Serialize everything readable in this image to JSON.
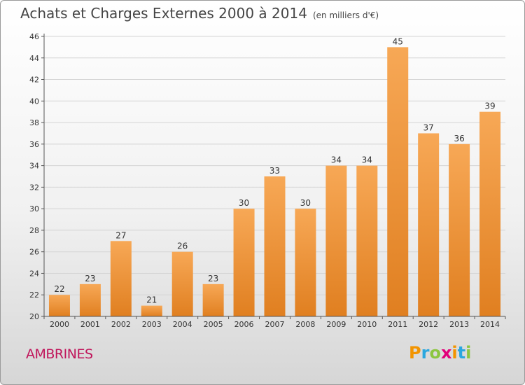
{
  "header": {
    "title": "Achats et Charges Externes 2000 à 2014",
    "unit": "(en milliers d'€)"
  },
  "footer": {
    "commune": "AMBRINES",
    "logo": "Proxiti",
    "logo_colors": [
      "#f29400",
      "#2aa7df",
      "#8cc63f",
      "#e2007a",
      "#f29400",
      "#2aa7df",
      "#8cc63f"
    ]
  },
  "chart_data": {
    "type": "bar",
    "categories": [
      "2000",
      "2001",
      "2002",
      "2003",
      "2004",
      "2005",
      "2006",
      "2007",
      "2008",
      "2009",
      "2010",
      "2011",
      "2012",
      "2013",
      "2014"
    ],
    "values": [
      22,
      23,
      27,
      21,
      26,
      23,
      30,
      33,
      30,
      34,
      34,
      45,
      37,
      36,
      39
    ],
    "ylim": [
      20,
      46
    ],
    "yticks": [
      20,
      22,
      24,
      26,
      28,
      30,
      32,
      34,
      36,
      38,
      40,
      42,
      44,
      46
    ],
    "data_labels": [
      "22",
      "23",
      "27",
      "21",
      "26",
      "23",
      "30",
      "33",
      "30",
      "34",
      "34",
      "45",
      "37",
      "36",
      "39"
    ],
    "grid": true,
    "bar_color_top": "#f7a856",
    "bar_color_bottom": "#e07f20"
  }
}
